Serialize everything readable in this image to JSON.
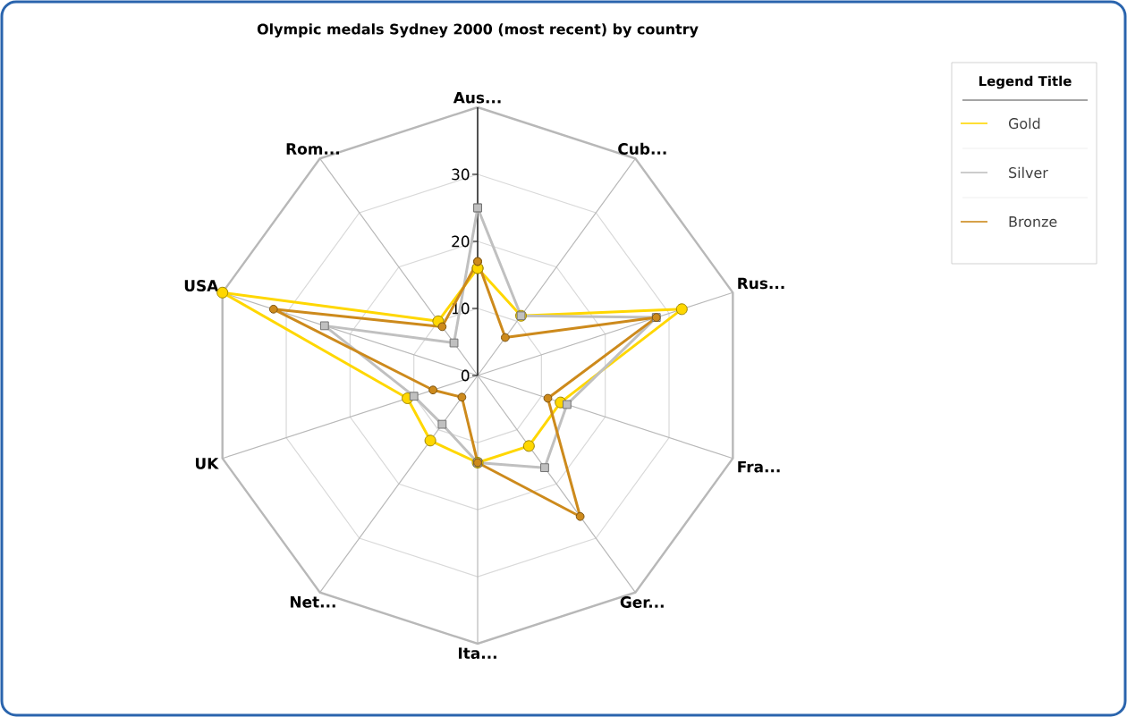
{
  "chart_data": {
    "type": "radar",
    "title": "Olympic medals Sydney 2000 (most recent) by country",
    "categories": [
      "Aus...",
      "Cub...",
      "Rus...",
      "Fra...",
      "Ger...",
      "Ita...",
      "Net...",
      "UK",
      "USA",
      "Rom..."
    ],
    "series": [
      {
        "name": "Gold",
        "color": "#ffd700",
        "marker": "circle",
        "values": [
          16,
          11,
          32,
          13,
          13,
          13,
          12,
          11,
          40,
          10
        ]
      },
      {
        "name": "Silver",
        "color": "#c0c0c0",
        "marker": "square",
        "values": [
          25,
          11,
          28,
          14,
          17,
          13,
          9,
          10,
          24,
          6
        ]
      },
      {
        "name": "Bronze",
        "color": "#cd8a1c",
        "marker": "circle",
        "values": [
          17,
          7,
          28,
          11,
          26,
          13,
          4,
          7,
          32,
          9
        ]
      }
    ],
    "ylim": [
      0,
      40
    ],
    "yticks": [
      0,
      10,
      20,
      30
    ],
    "grid": true,
    "legend": "top right",
    "legend_title": "Legend Title"
  }
}
